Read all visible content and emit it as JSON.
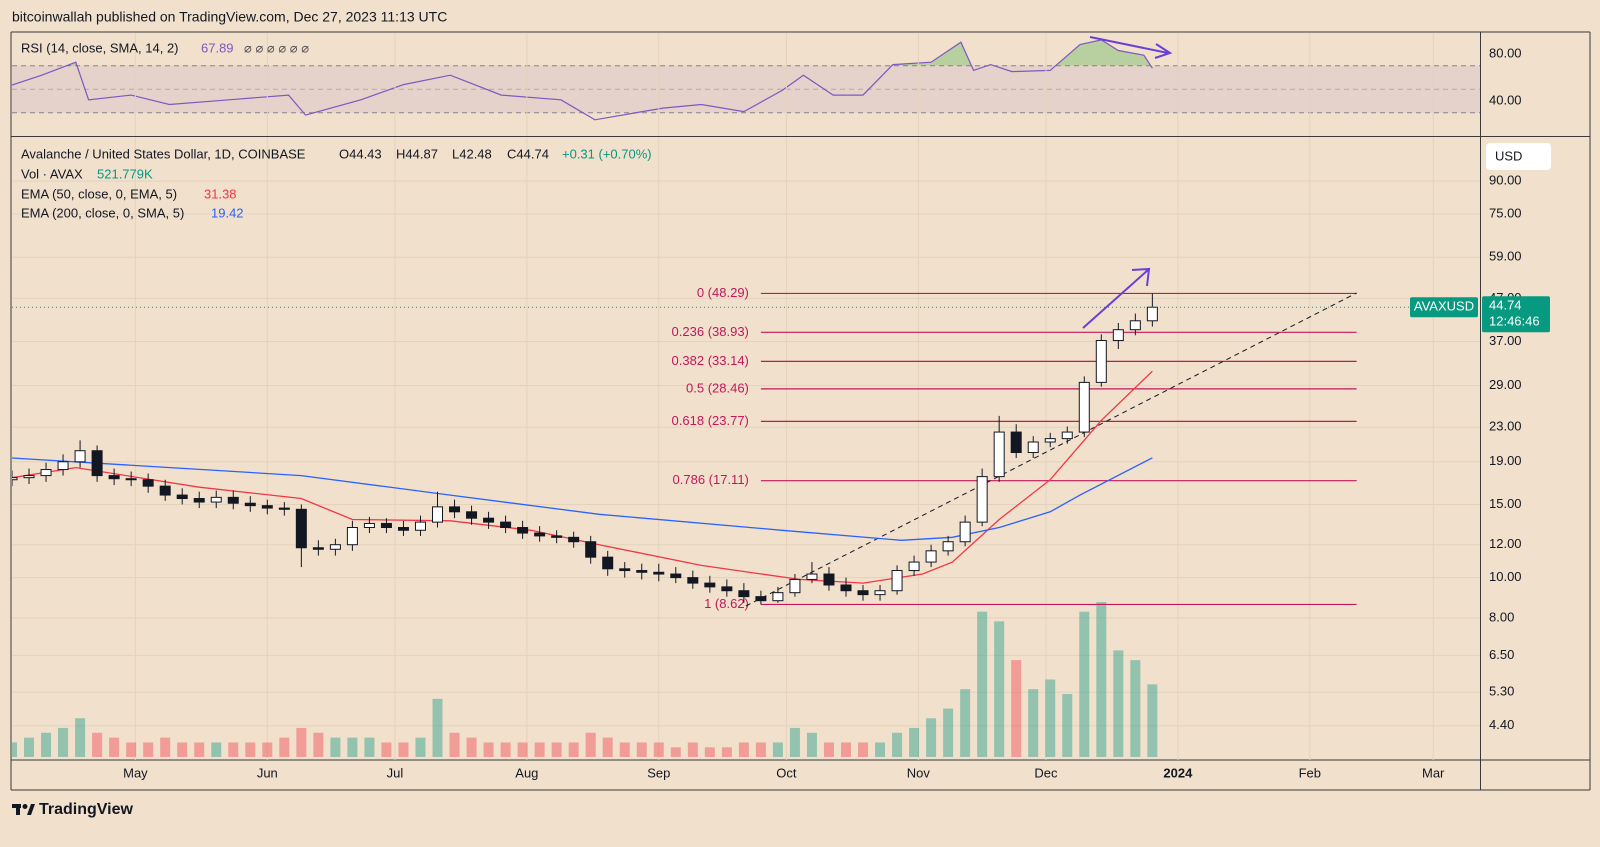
{
  "header": {
    "published": "bitcoinwallah published on TradingView.com, Dec 27, 2023 11:13 UTC",
    "brand": "TradingView"
  },
  "chart_data": [
    {
      "type": "line",
      "name": "RSI (14, close, SMA, 14, 2)",
      "status_icons": "⌀ ⌀ ⌀ ⌀ ⌀ ⌀",
      "color": "#7e57c2",
      "ylim": [
        9.4,
        98.7
      ],
      "yticks": [
        {
          "value": 80,
          "label": "80.00"
        },
        {
          "value": 40,
          "label": "40.00"
        }
      ],
      "bands": [
        70,
        50,
        30
      ],
      "xlim": [
        0,
        345
      ],
      "x": [
        0,
        7,
        15,
        18,
        28,
        37,
        51,
        65,
        69,
        82,
        92,
        103,
        115,
        129,
        137,
        153,
        162,
        172,
        181,
        186,
        193,
        200,
        207,
        216,
        223,
        226,
        230,
        235,
        244,
        251,
        256,
        260,
        266,
        268
      ],
      "values": [
        53.6,
        62,
        73,
        41,
        45,
        37,
        41,
        45,
        28,
        41,
        54,
        62,
        45,
        41,
        24,
        34,
        37,
        31,
        49,
        62,
        45,
        45,
        71,
        73,
        90,
        66,
        71,
        65,
        66,
        88,
        92,
        83,
        79,
        67.89
      ]
    },
    {
      "type": "candlestick",
      "title": "Avalanche / United States Dollar, 1D, COINBASE",
      "ohlc_labels": [
        "O44.43",
        "H44.87",
        "L42.48",
        "C44.74"
      ],
      "change": "+0.31 (+0.70%)",
      "currency": "USD",
      "symbol": "AVAXUSD",
      "countdown": "12:46:46",
      "up_color": "#089981",
      "down_color": "#f23645",
      "log_scale": true,
      "grid": true,
      "ylim": [
        3.64,
        114.9
      ],
      "yticks": [
        {
          "value": 90,
          "label": "90.00"
        },
        {
          "value": 75,
          "label": "75.00"
        },
        {
          "value": 59,
          "label": "59.00"
        },
        {
          "value": 47,
          "label": "47.00"
        },
        {
          "value": 37,
          "label": "37.00"
        },
        {
          "value": 29,
          "label": "29.00"
        },
        {
          "value": 23,
          "label": "23.00"
        },
        {
          "value": 19,
          "label": "19.00"
        },
        {
          "value": 15,
          "label": "15.00"
        },
        {
          "value": 12,
          "label": "12.00"
        },
        {
          "value": 10,
          "label": "10.00"
        },
        {
          "value": 8,
          "label": "8.00"
        },
        {
          "value": 6.5,
          "label": "6.50"
        },
        {
          "value": 5.3,
          "label": "5.30"
        },
        {
          "value": 4.4,
          "label": "4.40"
        }
      ],
      "xlim": [
        0,
        345
      ],
      "xticks": [
        {
          "value": 29,
          "label": "May"
        },
        {
          "value": 60,
          "label": "Jun"
        },
        {
          "value": 90,
          "label": "Jul"
        },
        {
          "value": 121,
          "label": "Aug"
        },
        {
          "value": 152,
          "label": "Sep"
        },
        {
          "value": 182,
          "label": "Oct"
        },
        {
          "value": 213,
          "label": "Nov"
        },
        {
          "value": 243,
          "label": "Dec"
        },
        {
          "value": 274,
          "label": "2024"
        },
        {
          "value": 305,
          "label": "Feb"
        },
        {
          "value": 334,
          "label": "Mar"
        }
      ],
      "x": [
        0,
        4,
        8,
        12,
        16,
        20,
        24,
        28,
        32,
        36,
        40,
        44,
        48,
        52,
        56,
        60,
        64,
        68,
        72,
        76,
        80,
        84,
        88,
        92,
        96,
        100,
        104,
        108,
        112,
        116,
        120,
        124,
        128,
        132,
        136,
        140,
        144,
        148,
        152,
        156,
        160,
        164,
        168,
        172,
        176,
        180,
        184,
        188,
        192,
        196,
        200,
        204,
        208,
        212,
        216,
        220,
        224,
        228,
        232,
        236,
        240,
        244,
        248,
        252,
        256,
        260,
        264,
        268
      ],
      "open": [
        17.2,
        17.4,
        17.6,
        18.2,
        19.0,
        20.2,
        17.6,
        17.3,
        17.2,
        16.6,
        15.8,
        15.5,
        15.2,
        15.6,
        15.1,
        14.9,
        14.7,
        14.6,
        11.8,
        11.7,
        12.0,
        13.2,
        13.5,
        13.2,
        13.0,
        13.6,
        14.8,
        14.4,
        13.9,
        13.6,
        13.2,
        12.8,
        12.6,
        12.5,
        12.2,
        11.2,
        10.5,
        10.4,
        10.3,
        10.2,
        10.0,
        9.7,
        9.5,
        9.3,
        9.0,
        8.8,
        9.2,
        9.9,
        10.2,
        9.6,
        9.3,
        9.1,
        9.3,
        10.4,
        10.9,
        11.6,
        12.2,
        13.6,
        17.5,
        22.4,
        20.0,
        21.2,
        21.6,
        22.4,
        29.5,
        37.2,
        39.5,
        41.5
      ],
      "high": [
        18.1,
        18.3,
        18.9,
        19.8,
        21.4,
        20.8,
        18.3,
        18.0,
        17.8,
        17.2,
        16.4,
        16.1,
        16.2,
        16.2,
        15.7,
        15.4,
        15.2,
        15.0,
        12.3,
        12.4,
        13.7,
        14.0,
        13.9,
        13.7,
        14.1,
        16.1,
        15.4,
        14.9,
        14.4,
        14.1,
        13.7,
        13.3,
        13.0,
        12.9,
        12.6,
        11.6,
        10.9,
        10.8,
        10.8,
        10.6,
        10.4,
        10.1,
        9.9,
        9.7,
        9.3,
        9.5,
        10.2,
        10.9,
        10.6,
        10.0,
        9.6,
        9.6,
        10.7,
        11.3,
        12.0,
        12.6,
        14.1,
        18.3,
        24.5,
        23.4,
        21.9,
        22.3,
        23.1,
        30.5,
        38.5,
        41.0,
        43.2,
        48.29
      ],
      "low": [
        16.6,
        16.8,
        17.0,
        17.6,
        18.4,
        17.0,
        16.7,
        16.6,
        16.0,
        15.3,
        15.0,
        14.7,
        14.7,
        14.6,
        14.4,
        14.2,
        14.1,
        10.6,
        11.3,
        11.3,
        11.6,
        12.8,
        12.8,
        12.6,
        12.6,
        13.2,
        13.9,
        13.4,
        13.1,
        12.8,
        12.4,
        12.2,
        12.1,
        11.8,
        10.8,
        10.1,
        10.0,
        9.9,
        9.8,
        9.7,
        9.4,
        9.2,
        9.0,
        8.7,
        8.62,
        8.7,
        9.0,
        9.7,
        9.3,
        9.0,
        8.8,
        8.8,
        9.1,
        10.1,
        10.6,
        11.3,
        11.9,
        13.3,
        17.0,
        19.4,
        19.4,
        20.6,
        21.0,
        21.8,
        28.8,
        35.5,
        38.3,
        40.2
      ],
      "close": [
        17.4,
        17.6,
        18.2,
        19.0,
        20.2,
        17.6,
        17.3,
        17.2,
        16.6,
        15.8,
        15.5,
        15.2,
        15.6,
        15.1,
        14.9,
        14.7,
        14.6,
        11.8,
        11.7,
        12.0,
        13.2,
        13.5,
        13.2,
        13.0,
        13.6,
        14.8,
        14.4,
        13.9,
        13.6,
        13.2,
        12.8,
        12.6,
        12.5,
        12.2,
        11.2,
        10.5,
        10.4,
        10.3,
        10.2,
        10.0,
        9.7,
        9.5,
        9.3,
        9.0,
        8.8,
        9.2,
        9.9,
        10.2,
        9.6,
        9.3,
        9.1,
        9.3,
        10.4,
        10.9,
        11.6,
        12.2,
        13.6,
        17.5,
        22.4,
        20.0,
        21.2,
        21.6,
        22.4,
        29.5,
        37.2,
        39.5,
        41.5,
        44.74
      ],
      "volume": {
        "name": "Vol · AVAX",
        "value_label": "521.779K",
        "values": [
          3,
          4,
          5,
          6,
          8,
          5,
          4,
          3,
          3,
          4,
          3,
          3,
          3,
          3,
          3,
          3,
          4,
          6,
          5,
          4,
          4,
          4,
          3,
          3,
          4,
          12,
          5,
          4,
          3,
          3,
          3,
          3,
          3,
          3,
          5,
          4,
          3,
          3,
          3,
          2,
          3,
          2,
          2,
          3,
          3,
          3,
          6,
          5,
          3,
          3,
          3,
          3,
          5,
          6,
          8,
          10,
          14,
          30,
          28,
          20,
          14,
          16,
          13,
          30,
          32,
          22,
          20,
          15
        ]
      },
      "series": [
        {
          "name": "EMA (50, close, 0, EMA, 5)",
          "color": "#f23645",
          "x": [
            0,
            15,
            44,
            68,
            80,
            103,
            122,
            138,
            162,
            185,
            200,
            214,
            221,
            232,
            244,
            256,
            268
          ],
          "values": [
            17.4,
            18.4,
            16.5,
            15.5,
            13.8,
            13.7,
            13.0,
            12.0,
            10.7,
            9.9,
            9.7,
            10.2,
            10.9,
            13.8,
            17.2,
            23.9,
            31.38
          ]
        },
        {
          "name": "EMA (200, close, 0, SMA, 5)",
          "color": "#2962ff",
          "x": [
            0,
            68,
            103,
            138,
            181,
            209,
            221,
            232,
            244,
            251,
            268
          ],
          "values": [
            19.4,
            17.6,
            15.8,
            14.2,
            13.0,
            12.3,
            12.5,
            13.2,
            14.4,
            15.8,
            19.42
          ]
        }
      ],
      "fib": {
        "color": "#c2185b",
        "levels": [
          48.29,
          38.93,
          33.14,
          28.46,
          23.77,
          17.11,
          8.62
        ],
        "labels": [
          "0 (48.29)",
          "0.236 (38.93)",
          "0.382 (33.14)",
          "0.5 (28.46)",
          "0.618 (23.77)",
          "0.786 (17.11)",
          "1 (8.62)"
        ]
      }
    }
  ]
}
